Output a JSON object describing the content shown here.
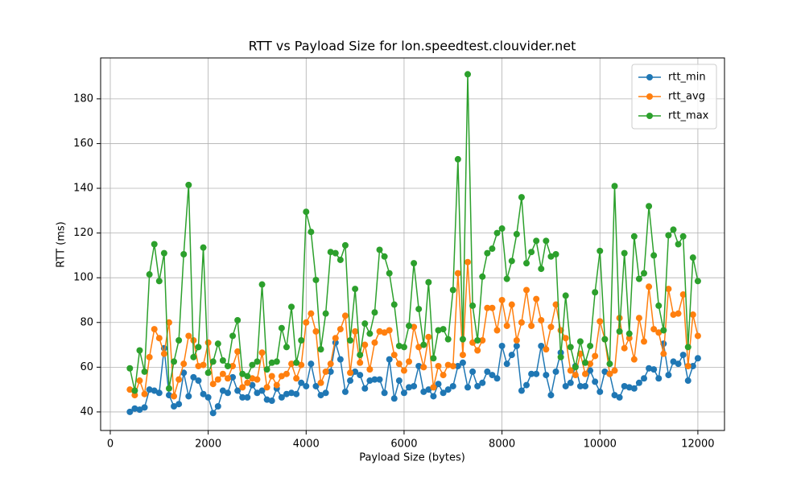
{
  "chart_data": {
    "type": "line",
    "title": "RTT vs Payload Size for lon.speedtest.clouvider.net",
    "xlabel": "Payload Size (bytes)",
    "ylabel": "RTT (ms)",
    "x": [
      400,
      500,
      600,
      700,
      800,
      900,
      1000,
      1100,
      1200,
      1300,
      1400,
      1500,
      1600,
      1700,
      1800,
      1900,
      2000,
      2100,
      2200,
      2300,
      2400,
      2500,
      2600,
      2700,
      2800,
      2900,
      3000,
      3100,
      3200,
      3300,
      3400,
      3500,
      3600,
      3700,
      3800,
      3900,
      4000,
      4100,
      4200,
      4300,
      4400,
      4500,
      4600,
      4700,
      4800,
      4900,
      5000,
      5100,
      5200,
      5300,
      5400,
      5500,
      5600,
      5700,
      5800,
      5900,
      6000,
      6100,
      6200,
      6300,
      6400,
      6500,
      6600,
      6700,
      6800,
      6900,
      7000,
      7100,
      7200,
      7300,
      7400,
      7500,
      7600,
      7700,
      7800,
      7900,
      8000,
      8100,
      8200,
      8300,
      8400,
      8500,
      8600,
      8700,
      8800,
      8900,
      9000,
      9100,
      9200,
      9300,
      9400,
      9500,
      9600,
      9700,
      9800,
      9900,
      10000,
      10100,
      10200,
      10300,
      10400,
      10500,
      10600,
      10700,
      10800,
      10900,
      11000,
      11100,
      11200,
      11300,
      11400,
      11500,
      11600,
      11700,
      11800,
      11900,
      12000
    ],
    "series": [
      {
        "name": "rtt_min",
        "color": "#1f77b4",
        "values": [
          40,
          41.5,
          41,
          42,
          50,
          49.5,
          48.5,
          68.5,
          47.5,
          42.5,
          43.5,
          57.5,
          47,
          55.5,
          54,
          48,
          46.5,
          39.5,
          42.5,
          49.5,
          48.5,
          55.5,
          49.5,
          46.5,
          46.5,
          52,
          48.5,
          49.5,
          45.5,
          45,
          50.5,
          46.5,
          48,
          48.5,
          48,
          53,
          51.5,
          61.5,
          51.5,
          47.5,
          48.5,
          58,
          71,
          63.5,
          49,
          54,
          58,
          56.5,
          50.5,
          54,
          54.5,
          54.5,
          48.5,
          63.5,
          46,
          54,
          48.5,
          51,
          51.5,
          60.5,
          49,
          50,
          47,
          52.5,
          48.5,
          50,
          51.5,
          60.5,
          62,
          51,
          58,
          51.5,
          53,
          58,
          56.5,
          55,
          69.5,
          61.5,
          65.5,
          69.5,
          49.5,
          52,
          57,
          57,
          69.5,
          56.5,
          47.5,
          58,
          66.5,
          51.5,
          53,
          60.5,
          51.5,
          51.5,
          58.5,
          53.5,
          49,
          58,
          57,
          47.5,
          46.5,
          51.5,
          51,
          50.5,
          53,
          55,
          59.5,
          59,
          55,
          70.5,
          56.5,
          62.5,
          61.5,
          65.5,
          54,
          60.5,
          64
        ]
      },
      {
        "name": "rtt_avg",
        "color": "#ff7f0e",
        "values": [
          50,
          47.5,
          54,
          48,
          64.5,
          77,
          73,
          66,
          80,
          47,
          54.5,
          61.5,
          74,
          72,
          60.5,
          61,
          71,
          52.5,
          54.5,
          57,
          55,
          60.5,
          67,
          51,
          53,
          55,
          54.5,
          66.5,
          51,
          56,
          52,
          56,
          57,
          61.5,
          55,
          61,
          80,
          84,
          76,
          53,
          58,
          61.5,
          73,
          77,
          83,
          57.5,
          76,
          62,
          70,
          59,
          71,
          76,
          75.5,
          76.5,
          65.5,
          61.5,
          58.5,
          62.5,
          78,
          69,
          60,
          73.5,
          51,
          60.5,
          56.5,
          61,
          60.5,
          102,
          65.5,
          107,
          71,
          67.5,
          72,
          86.5,
          86.5,
          76.5,
          90,
          78.5,
          88,
          72,
          80,
          94.5,
          78.5,
          90.5,
          81,
          68,
          78,
          88,
          76.5,
          73,
          58.5,
          56.5,
          66,
          57,
          61.5,
          65,
          80.5,
          72.5,
          57,
          58.5,
          82,
          68.5,
          73,
          63.5,
          82,
          71.5,
          96,
          77,
          75.5,
          66,
          95,
          83.5,
          84,
          92.5,
          60.5,
          83.5,
          74
        ]
      },
      {
        "name": "rtt_max",
        "color": "#2ca02c",
        "values": [
          59.5,
          49.5,
          67.5,
          58,
          101.5,
          115,
          98.5,
          111,
          50.5,
          62.5,
          72,
          110.5,
          141.5,
          64.5,
          69,
          113.5,
          57.5,
          62.5,
          70.5,
          63,
          60.5,
          74,
          81,
          57,
          56,
          61,
          62.5,
          97,
          59,
          62,
          62.5,
          77.5,
          69,
          87,
          62,
          72,
          129.5,
          120.5,
          99,
          68,
          84,
          111.5,
          111,
          108,
          114.5,
          72,
          95,
          65.5,
          79.5,
          75,
          84.5,
          112.5,
          109.5,
          102,
          88,
          69.5,
          69,
          78.5,
          106.5,
          86,
          70,
          98,
          64,
          76.5,
          77,
          72.5,
          94.5,
          153,
          72.5,
          191,
          87.5,
          72,
          100.5,
          111,
          113,
          120,
          122,
          99.5,
          107.5,
          119.5,
          136,
          106.5,
          111.5,
          116.5,
          104,
          116.5,
          109.5,
          110.5,
          64.5,
          92,
          69,
          60,
          71.5,
          62,
          69.5,
          93.5,
          112,
          72.5,
          61.5,
          141,
          76,
          111,
          75,
          118.5,
          99.5,
          102,
          132,
          110,
          87.5,
          76.5,
          119,
          121.5,
          115,
          118.5,
          69,
          109,
          98.5
        ]
      }
    ],
    "xlim": [
      -197,
      12544
    ],
    "ylim": [
      31.7,
      198.3
    ],
    "xticks": [
      0,
      2000,
      4000,
      6000,
      8000,
      10000,
      12000
    ],
    "yticks": [
      40,
      60,
      80,
      100,
      120,
      140,
      160,
      180
    ],
    "grid": true,
    "legend": "upper right",
    "marker": "o"
  }
}
